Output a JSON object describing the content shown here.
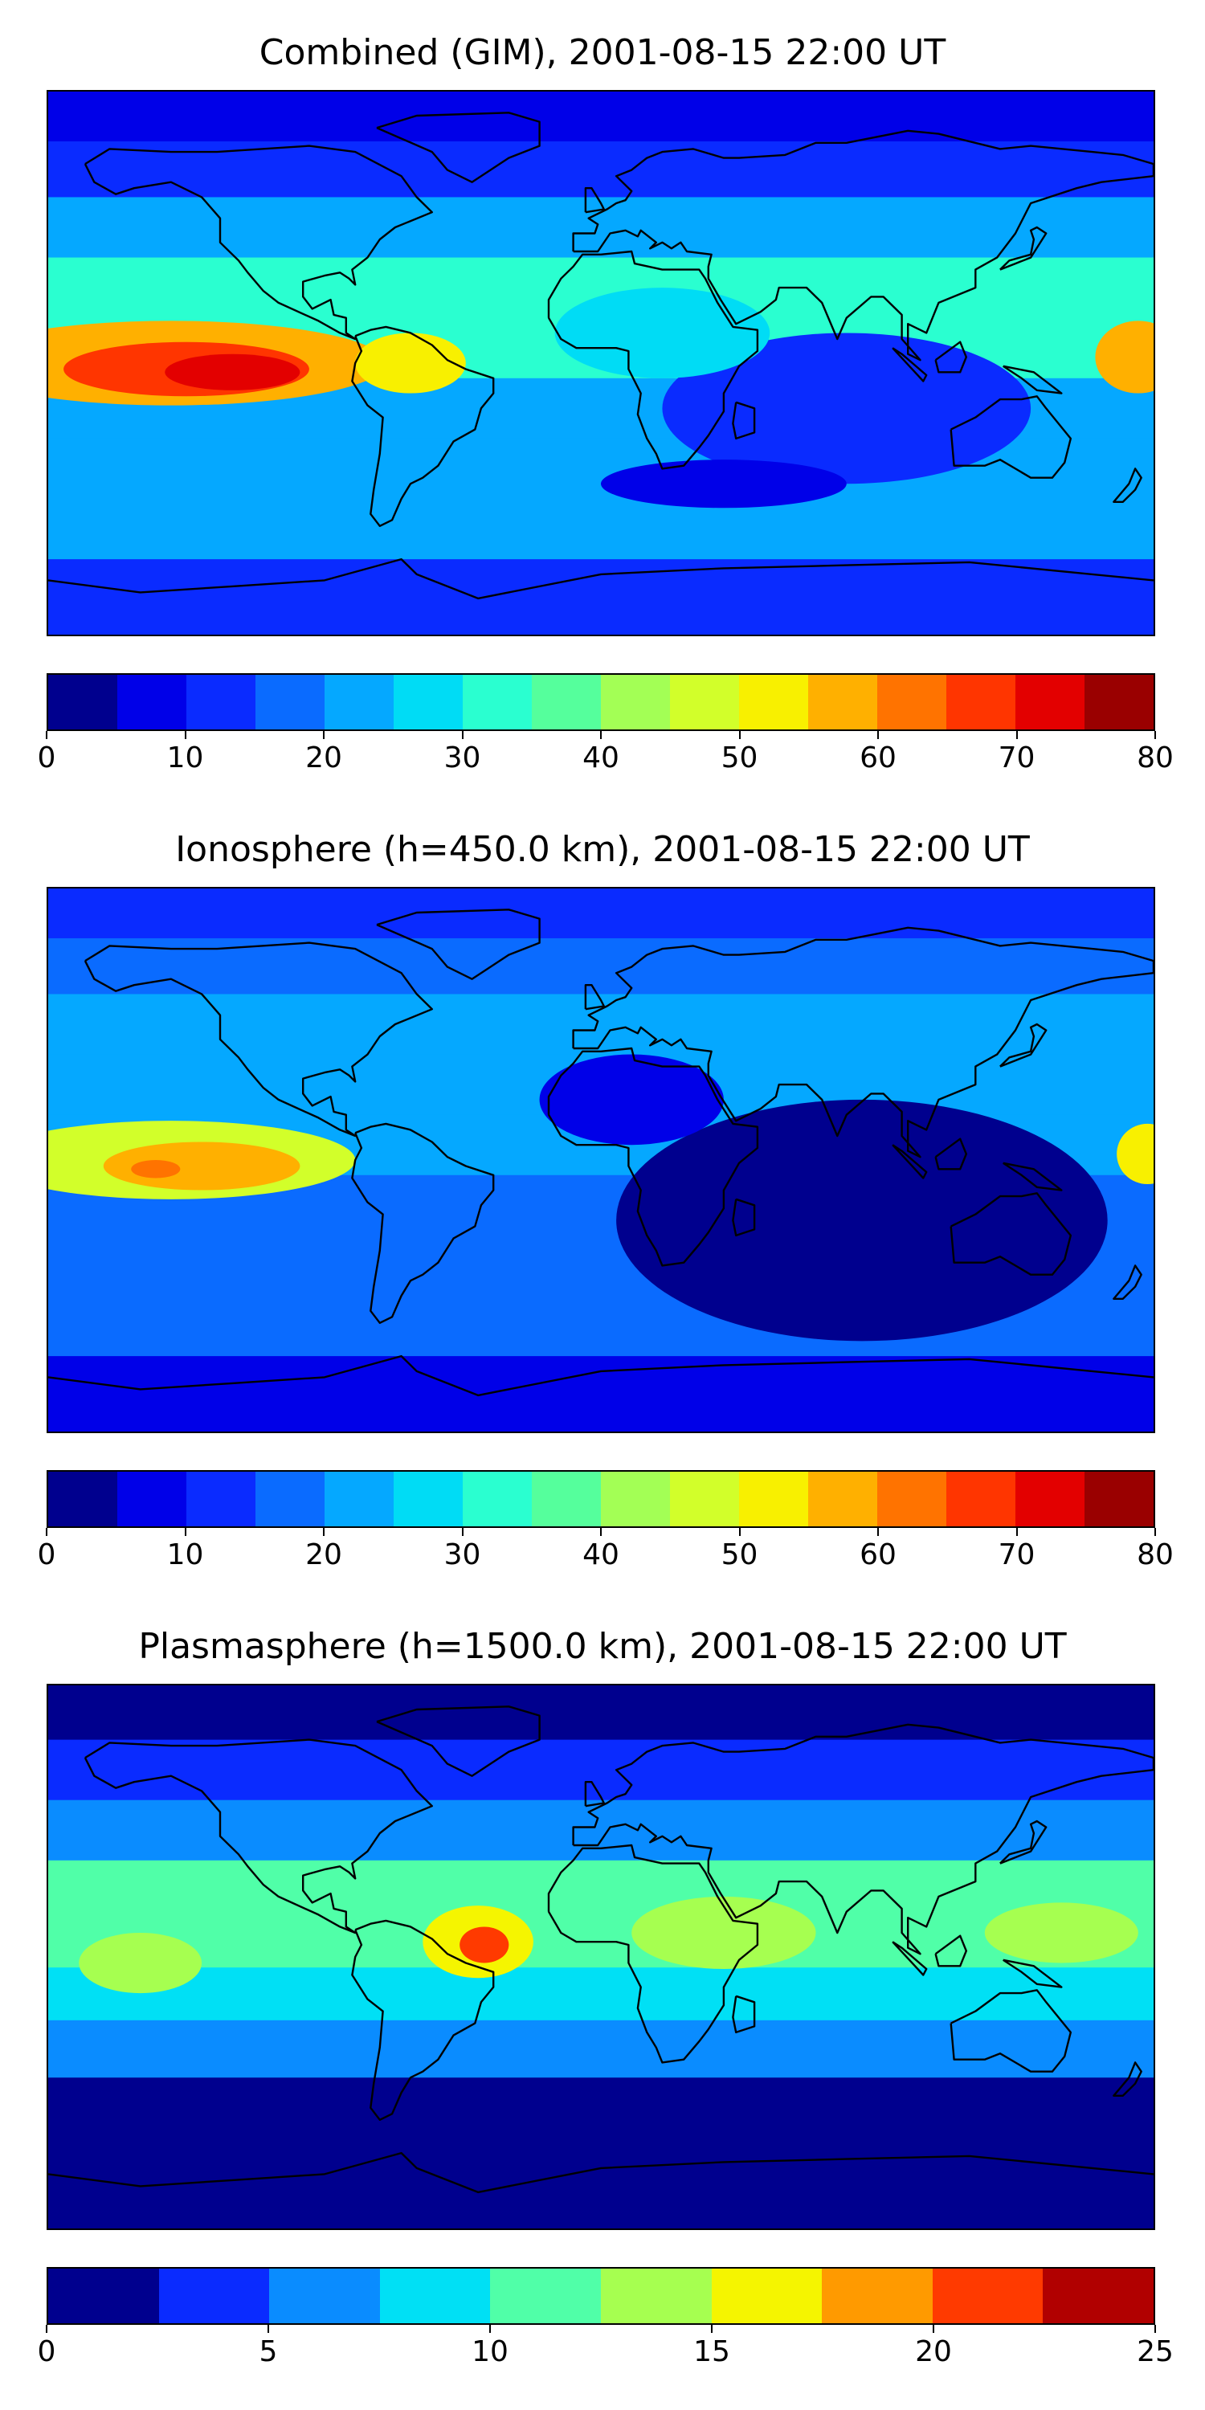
{
  "panels": [
    {
      "title": "Combined (GIM), 2001-08-15 22:00 UT",
      "colorbar": {
        "range": [
          0,
          80
        ],
        "step": 5,
        "ticks": [
          "0",
          "10",
          "20",
          "30",
          "40",
          "50",
          "60",
          "70",
          "80"
        ],
        "colors": [
          "#00008e",
          "#0000e8",
          "#0a2bff",
          "#0a6bff",
          "#05a8ff",
          "#00dcf5",
          "#2affd0",
          "#55ff9c",
          "#a3ff55",
          "#d2ff2a",
          "#f8f000",
          "#ffb000",
          "#ff7300",
          "#ff3500",
          "#e30000",
          "#9a0000"
        ]
      },
      "bands": [
        {
          "lat": 82,
          "value": 8
        },
        {
          "lat": 65,
          "value": 14
        },
        {
          "lat": 45,
          "value": 22
        },
        {
          "lat": 25,
          "value": 30
        },
        {
          "lat": 5,
          "value": 30
        },
        {
          "lat": -15,
          "value": 24
        },
        {
          "lat": -35,
          "value": 22
        },
        {
          "lat": -55,
          "value": 20
        },
        {
          "lat": -75,
          "value": 10
        }
      ],
      "blobs": [
        {
          "lon": -140,
          "lat": 0,
          "rx": 70,
          "ry": 14,
          "value": 56
        },
        {
          "lon": -135,
          "lat": -2,
          "rx": 40,
          "ry": 9,
          "value": 66
        },
        {
          "lon": -120,
          "lat": -3,
          "rx": 22,
          "ry": 6,
          "value": 72
        },
        {
          "lon": -62,
          "lat": 0,
          "rx": 18,
          "ry": 10,
          "value": 53
        },
        {
          "lon": 175,
          "lat": 2,
          "rx": 14,
          "ry": 12,
          "value": 58
        },
        {
          "lon": 80,
          "lat": -15,
          "rx": 60,
          "ry": 25,
          "value": 10
        },
        {
          "lon": 40,
          "lat": -40,
          "rx": 40,
          "ry": 8,
          "value": 8
        },
        {
          "lon": 20,
          "lat": 10,
          "rx": 35,
          "ry": 15,
          "value": 28
        }
      ]
    },
    {
      "title": "Ionosphere  (h=450.0 km), 2001-08-15 22:00 UT",
      "colorbar": {
        "range": [
          0,
          80
        ],
        "step": 5,
        "ticks": [
          "0",
          "10",
          "20",
          "30",
          "40",
          "50",
          "60",
          "70",
          "80"
        ],
        "colors": [
          "#00008e",
          "#0000e8",
          "#0a2bff",
          "#0a6bff",
          "#05a8ff",
          "#00dcf5",
          "#2affd0",
          "#55ff9c",
          "#a3ff55",
          "#d2ff2a",
          "#f8f000",
          "#ffb000",
          "#ff7300",
          "#ff3500",
          "#e30000",
          "#9a0000"
        ]
      },
      "bands": [
        {
          "lat": 82,
          "value": 10
        },
        {
          "lat": 65,
          "value": 16
        },
        {
          "lat": 45,
          "value": 20
        },
        {
          "lat": 25,
          "value": 24
        },
        {
          "lat": 5,
          "value": 24
        },
        {
          "lat": -15,
          "value": 18
        },
        {
          "lat": -35,
          "value": 18
        },
        {
          "lat": -55,
          "value": 16
        },
        {
          "lat": -75,
          "value": 6
        }
      ],
      "blobs": [
        {
          "lon": -140,
          "lat": 0,
          "rx": 60,
          "ry": 13,
          "value": 48
        },
        {
          "lon": -130,
          "lat": -2,
          "rx": 32,
          "ry": 8,
          "value": 55
        },
        {
          "lon": -145,
          "lat": -3,
          "rx": 8,
          "ry": 3,
          "value": 62
        },
        {
          "lon": 178,
          "lat": 2,
          "rx": 10,
          "ry": 10,
          "value": 50
        },
        {
          "lon": 85,
          "lat": -20,
          "rx": 80,
          "ry": 40,
          "value": 4
        },
        {
          "lon": 10,
          "lat": 20,
          "rx": 30,
          "ry": 15,
          "value": 8
        }
      ]
    },
    {
      "title": "Plasmasphere (h=1500.0 km), 2001-08-15 22:00 UT",
      "colorbar": {
        "range": [
          0,
          25
        ],
        "step": 2.5,
        "ticks": [
          "0",
          "5",
          "10",
          "15",
          "20",
          "25"
        ],
        "colors": [
          "#00008e",
          "#0a2bff",
          "#0a8cff",
          "#00e0f5",
          "#50ffa8",
          "#a6ff50",
          "#f5f500",
          "#ff9a00",
          "#ff3a00",
          "#b10000"
        ]
      },
      "bands": [
        {
          "lat": 82,
          "value": 1.5
        },
        {
          "lat": 62,
          "value": 4
        },
        {
          "lat": 42,
          "value": 7
        },
        {
          "lat": 22,
          "value": 10.5
        },
        {
          "lat": 5,
          "value": 11
        },
        {
          "lat": -12,
          "value": 9
        },
        {
          "lat": -30,
          "value": 5
        },
        {
          "lat": -50,
          "value": 2
        },
        {
          "lat": -75,
          "value": 1
        }
      ],
      "blobs": [
        {
          "lon": -40,
          "lat": 5,
          "rx": 18,
          "ry": 12,
          "value": 16
        },
        {
          "lon": -38,
          "lat": 4,
          "rx": 8,
          "ry": 6,
          "value": 21
        },
        {
          "lon": -150,
          "lat": -2,
          "rx": 20,
          "ry": 10,
          "value": 13
        },
        {
          "lon": 150,
          "lat": 8,
          "rx": 25,
          "ry": 10,
          "value": 13
        },
        {
          "lon": 40,
          "lat": 8,
          "rx": 30,
          "ry": 12,
          "value": 13
        }
      ]
    }
  ]
}
